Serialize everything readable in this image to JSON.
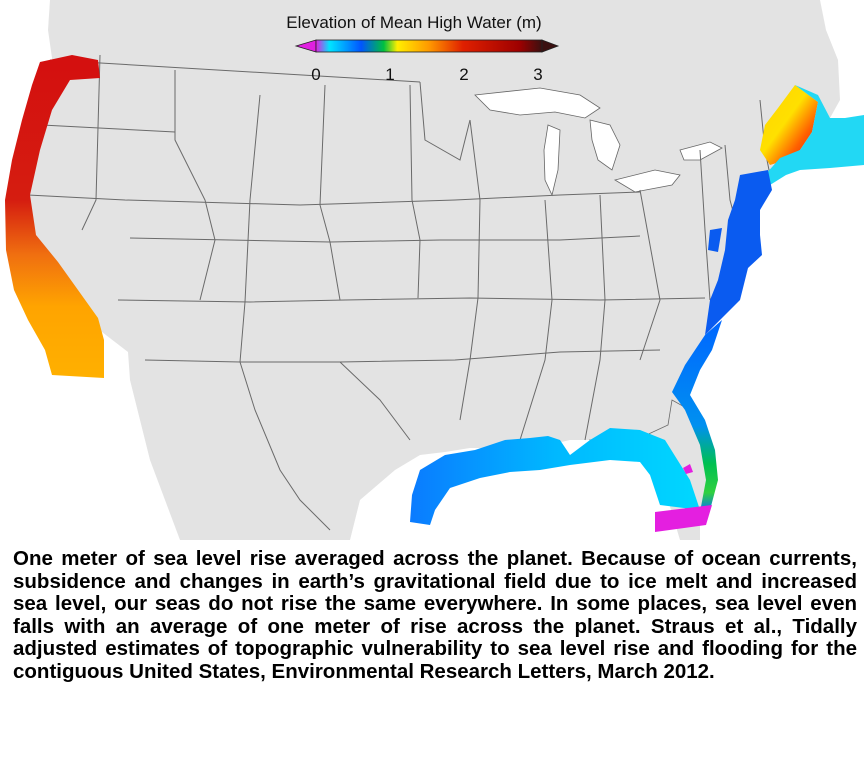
{
  "colorbar": {
    "title": "Elevation of Mean High Water (m)",
    "ticks": [
      "0",
      "1",
      "2",
      "3"
    ],
    "min": -0.3,
    "max": 3.2,
    "colors": [
      "#e020e0",
      "#00e5ff",
      "#0055ff",
      "#00c040",
      "#ffee00",
      "#ff9900",
      "#e02000",
      "#9e0000",
      "#3a1010"
    ]
  },
  "map": {
    "region": "contiguous United States",
    "land_color": "#e3e3e3",
    "boundary_color": "#555555",
    "coastal_segments": [
      {
        "name": "pacific-northwest",
        "level": "red"
      },
      {
        "name": "northern-california",
        "level": "red-orange"
      },
      {
        "name": "southern-california",
        "level": "orange"
      },
      {
        "name": "gulf-of-maine",
        "level": "yellow-red"
      },
      {
        "name": "new-england-offshore",
        "level": "cyan"
      },
      {
        "name": "mid-atlantic",
        "level": "blue"
      },
      {
        "name": "southeast-atlantic",
        "level": "blue-green"
      },
      {
        "name": "gulf-coast",
        "level": "blue-cyan"
      },
      {
        "name": "south-florida",
        "level": "magenta"
      }
    ]
  },
  "caption": "One meter of sea level rise averaged across the planet. Because of ocean currents, subsidence and changes in earth’s gravitational field due to ice melt and increased sea level, our seas do not rise the same everywhere. In some places, sea level even falls with an average of one meter of rise across the planet. Straus et al., Tidally adjusted estimates of topographic vulnerability to sea level rise and flooding for the contiguous United States, Environmental Research Letters, March 2012."
}
